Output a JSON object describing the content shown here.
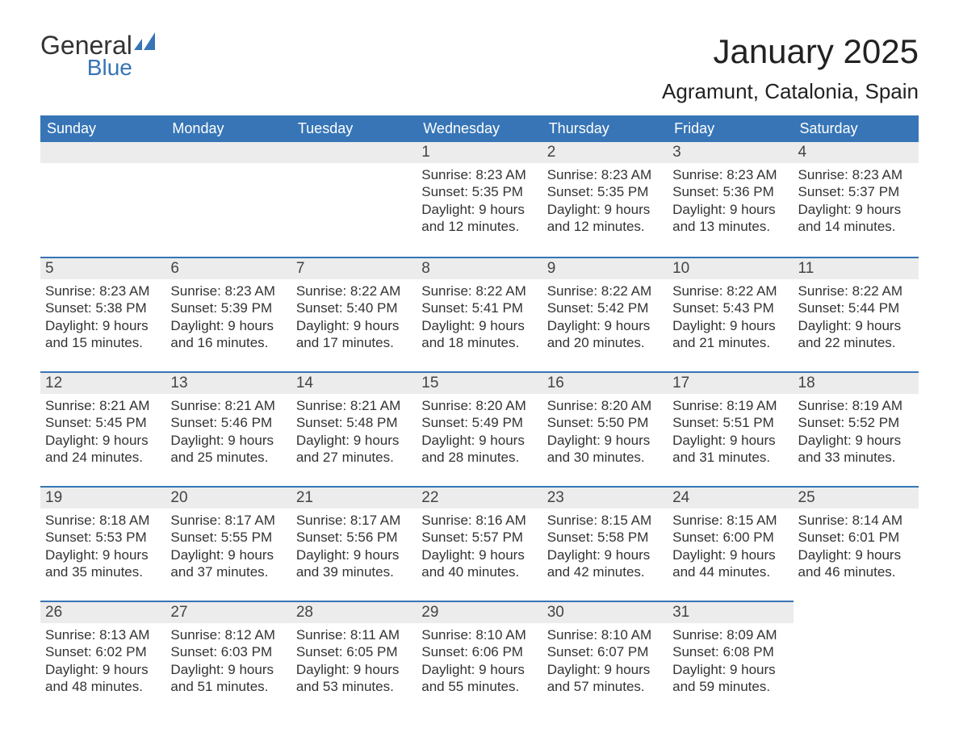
{
  "logo": {
    "general": "General",
    "blue": "Blue",
    "flag_color": "#3775b6"
  },
  "header": {
    "title": "January 2025",
    "location": "Agramunt, Catalonia, Spain"
  },
  "calendar": {
    "type": "table",
    "columns": [
      "Sunday",
      "Monday",
      "Tuesday",
      "Wednesday",
      "Thursday",
      "Friday",
      "Saturday"
    ],
    "header_bg": "#3775b6",
    "header_fg": "#ffffff",
    "row_divider_color": "#3775b6",
    "daynum_bg": "#ececec",
    "daynum_fg": "#444444",
    "body_fg": "#333333",
    "font_family": "Arial",
    "header_fontsize": 18,
    "daynum_fontsize": 19,
    "body_fontsize": 17,
    "weeks": [
      [
        null,
        null,
        null,
        {
          "n": "1",
          "sunrise": "Sunrise: 8:23 AM",
          "sunset": "Sunset: 5:35 PM",
          "dl1": "Daylight: 9 hours",
          "dl2": "and 12 minutes."
        },
        {
          "n": "2",
          "sunrise": "Sunrise: 8:23 AM",
          "sunset": "Sunset: 5:35 PM",
          "dl1": "Daylight: 9 hours",
          "dl2": "and 12 minutes."
        },
        {
          "n": "3",
          "sunrise": "Sunrise: 8:23 AM",
          "sunset": "Sunset: 5:36 PM",
          "dl1": "Daylight: 9 hours",
          "dl2": "and 13 minutes."
        },
        {
          "n": "4",
          "sunrise": "Sunrise: 8:23 AM",
          "sunset": "Sunset: 5:37 PM",
          "dl1": "Daylight: 9 hours",
          "dl2": "and 14 minutes."
        }
      ],
      [
        {
          "n": "5",
          "sunrise": "Sunrise: 8:23 AM",
          "sunset": "Sunset: 5:38 PM",
          "dl1": "Daylight: 9 hours",
          "dl2": "and 15 minutes."
        },
        {
          "n": "6",
          "sunrise": "Sunrise: 8:23 AM",
          "sunset": "Sunset: 5:39 PM",
          "dl1": "Daylight: 9 hours",
          "dl2": "and 16 minutes."
        },
        {
          "n": "7",
          "sunrise": "Sunrise: 8:22 AM",
          "sunset": "Sunset: 5:40 PM",
          "dl1": "Daylight: 9 hours",
          "dl2": "and 17 minutes."
        },
        {
          "n": "8",
          "sunrise": "Sunrise: 8:22 AM",
          "sunset": "Sunset: 5:41 PM",
          "dl1": "Daylight: 9 hours",
          "dl2": "and 18 minutes."
        },
        {
          "n": "9",
          "sunrise": "Sunrise: 8:22 AM",
          "sunset": "Sunset: 5:42 PM",
          "dl1": "Daylight: 9 hours",
          "dl2": "and 20 minutes."
        },
        {
          "n": "10",
          "sunrise": "Sunrise: 8:22 AM",
          "sunset": "Sunset: 5:43 PM",
          "dl1": "Daylight: 9 hours",
          "dl2": "and 21 minutes."
        },
        {
          "n": "11",
          "sunrise": "Sunrise: 8:22 AM",
          "sunset": "Sunset: 5:44 PM",
          "dl1": "Daylight: 9 hours",
          "dl2": "and 22 minutes."
        }
      ],
      [
        {
          "n": "12",
          "sunrise": "Sunrise: 8:21 AM",
          "sunset": "Sunset: 5:45 PM",
          "dl1": "Daylight: 9 hours",
          "dl2": "and 24 minutes."
        },
        {
          "n": "13",
          "sunrise": "Sunrise: 8:21 AM",
          "sunset": "Sunset: 5:46 PM",
          "dl1": "Daylight: 9 hours",
          "dl2": "and 25 minutes."
        },
        {
          "n": "14",
          "sunrise": "Sunrise: 8:21 AM",
          "sunset": "Sunset: 5:48 PM",
          "dl1": "Daylight: 9 hours",
          "dl2": "and 27 minutes."
        },
        {
          "n": "15",
          "sunrise": "Sunrise: 8:20 AM",
          "sunset": "Sunset: 5:49 PM",
          "dl1": "Daylight: 9 hours",
          "dl2": "and 28 minutes."
        },
        {
          "n": "16",
          "sunrise": "Sunrise: 8:20 AM",
          "sunset": "Sunset: 5:50 PM",
          "dl1": "Daylight: 9 hours",
          "dl2": "and 30 minutes."
        },
        {
          "n": "17",
          "sunrise": "Sunrise: 8:19 AM",
          "sunset": "Sunset: 5:51 PM",
          "dl1": "Daylight: 9 hours",
          "dl2": "and 31 minutes."
        },
        {
          "n": "18",
          "sunrise": "Sunrise: 8:19 AM",
          "sunset": "Sunset: 5:52 PM",
          "dl1": "Daylight: 9 hours",
          "dl2": "and 33 minutes."
        }
      ],
      [
        {
          "n": "19",
          "sunrise": "Sunrise: 8:18 AM",
          "sunset": "Sunset: 5:53 PM",
          "dl1": "Daylight: 9 hours",
          "dl2": "and 35 minutes."
        },
        {
          "n": "20",
          "sunrise": "Sunrise: 8:17 AM",
          "sunset": "Sunset: 5:55 PM",
          "dl1": "Daylight: 9 hours",
          "dl2": "and 37 minutes."
        },
        {
          "n": "21",
          "sunrise": "Sunrise: 8:17 AM",
          "sunset": "Sunset: 5:56 PM",
          "dl1": "Daylight: 9 hours",
          "dl2": "and 39 minutes."
        },
        {
          "n": "22",
          "sunrise": "Sunrise: 8:16 AM",
          "sunset": "Sunset: 5:57 PM",
          "dl1": "Daylight: 9 hours",
          "dl2": "and 40 minutes."
        },
        {
          "n": "23",
          "sunrise": "Sunrise: 8:15 AM",
          "sunset": "Sunset: 5:58 PM",
          "dl1": "Daylight: 9 hours",
          "dl2": "and 42 minutes."
        },
        {
          "n": "24",
          "sunrise": "Sunrise: 8:15 AM",
          "sunset": "Sunset: 6:00 PM",
          "dl1": "Daylight: 9 hours",
          "dl2": "and 44 minutes."
        },
        {
          "n": "25",
          "sunrise": "Sunrise: 8:14 AM",
          "sunset": "Sunset: 6:01 PM",
          "dl1": "Daylight: 9 hours",
          "dl2": "and 46 minutes."
        }
      ],
      [
        {
          "n": "26",
          "sunrise": "Sunrise: 8:13 AM",
          "sunset": "Sunset: 6:02 PM",
          "dl1": "Daylight: 9 hours",
          "dl2": "and 48 minutes."
        },
        {
          "n": "27",
          "sunrise": "Sunrise: 8:12 AM",
          "sunset": "Sunset: 6:03 PM",
          "dl1": "Daylight: 9 hours",
          "dl2": "and 51 minutes."
        },
        {
          "n": "28",
          "sunrise": "Sunrise: 8:11 AM",
          "sunset": "Sunset: 6:05 PM",
          "dl1": "Daylight: 9 hours",
          "dl2": "and 53 minutes."
        },
        {
          "n": "29",
          "sunrise": "Sunrise: 8:10 AM",
          "sunset": "Sunset: 6:06 PM",
          "dl1": "Daylight: 9 hours",
          "dl2": "and 55 minutes."
        },
        {
          "n": "30",
          "sunrise": "Sunrise: 8:10 AM",
          "sunset": "Sunset: 6:07 PM",
          "dl1": "Daylight: 9 hours",
          "dl2": "and 57 minutes."
        },
        {
          "n": "31",
          "sunrise": "Sunrise: 8:09 AM",
          "sunset": "Sunset: 6:08 PM",
          "dl1": "Daylight: 9 hours",
          "dl2": "and 59 minutes."
        },
        null
      ]
    ]
  }
}
